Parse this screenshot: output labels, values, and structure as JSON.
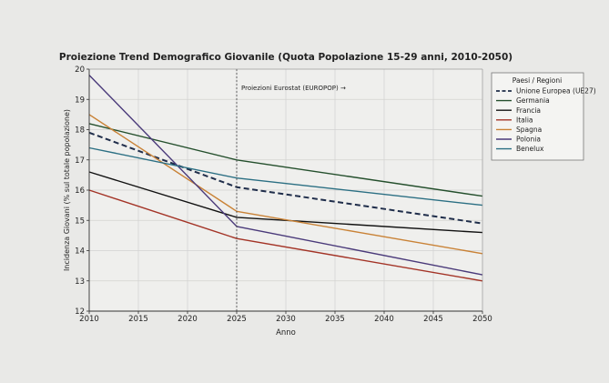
{
  "chart_data": {
    "type": "line",
    "title": "Proiezione Trend Demografico Giovanile (Quota Popolazione 15-29 anni, 2010-2050)",
    "xlabel": "Anno",
    "ylabel": "Incidenza Giovani (% sul totale popolazione)",
    "x": [
      2010,
      2025,
      2050
    ],
    "xticks": [
      2010,
      2015,
      2020,
      2025,
      2030,
      2035,
      2040,
      2045,
      2050
    ],
    "yticks": [
      12,
      13,
      14,
      15,
      16,
      17,
      18,
      19,
      20
    ],
    "xlim": [
      2010,
      2050
    ],
    "ylim": [
      12,
      20
    ],
    "grid": true,
    "annotation": {
      "text": "Proiezioni Eurostat (EUROPOP) →",
      "x": 2025
    },
    "legend": {
      "title": "Paesi / Regioni",
      "placement": "outside-right"
    },
    "series": [
      {
        "name": "Unione Europea (UE27)",
        "values": [
          17.9,
          16.1,
          14.9
        ],
        "color": "#1f2d4a",
        "style": "dashed"
      },
      {
        "name": "Germania",
        "values": [
          18.2,
          17.0,
          15.8
        ],
        "color": "#244f2c",
        "style": "solid"
      },
      {
        "name": "Francia",
        "values": [
          16.6,
          15.1,
          14.6
        ],
        "color": "#111111",
        "style": "solid"
      },
      {
        "name": "Italia",
        "values": [
          16.0,
          14.4,
          13.0
        ],
        "color": "#a33326",
        "style": "solid"
      },
      {
        "name": "Spagna",
        "values": [
          18.5,
          15.3,
          13.9
        ],
        "color": "#c98236",
        "style": "solid"
      },
      {
        "name": "Polonia",
        "values": [
          19.8,
          14.8,
          13.2
        ],
        "color": "#4a3a7a",
        "style": "solid"
      },
      {
        "name": "Benelux",
        "values": [
          17.4,
          16.4,
          15.5
        ],
        "color": "#2b6f83",
        "style": "solid"
      }
    ]
  }
}
